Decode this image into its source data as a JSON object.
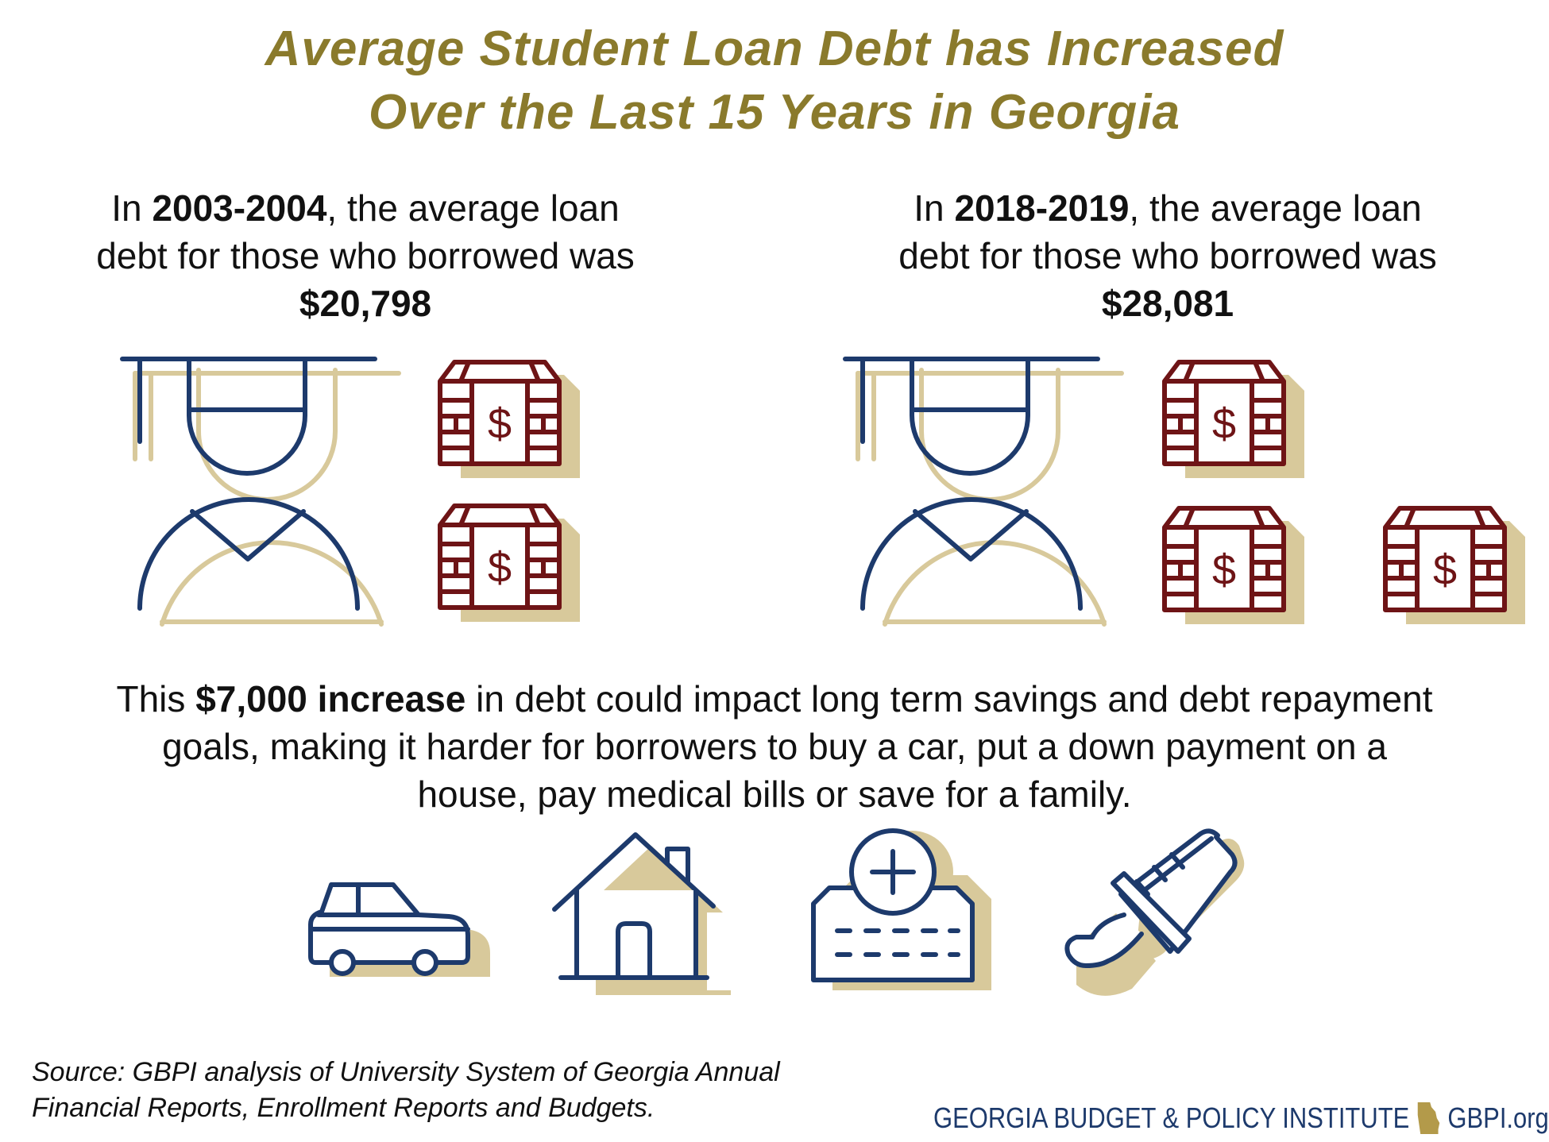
{
  "title": {
    "line1": "Average Student Loan Debt has Increased",
    "line2": "Over the Last 15 Years in Georgia"
  },
  "left_stat": {
    "pre": "In ",
    "year": "2003-2004",
    "mid": ", the average loan debt for those who borrowed was ",
    "amount": "$20,798"
  },
  "right_stat": {
    "pre": "In ",
    "year": "2018-2019",
    "mid": ", the average loan debt for those who borrowed was ",
    "amount": "$28,081"
  },
  "middle": {
    "pre": "This ",
    "bold": "$7,000 increase",
    "post": " in debt could impact long term savings and debt repayment goals, making it harder for borrowers to buy a car, put a down payment on a house, pay medical bills or save for a family."
  },
  "source": {
    "line1": "Source: GBPI analysis of University System of Georgia Annual",
    "line2": "Financial Reports, Enrollment Reports and Budgets."
  },
  "brand": {
    "name": "GEORGIA BUDGET & POLICY INSTITUTE",
    "url": "GBPI.org"
  },
  "icons": {
    "graduate": "graduate-icon",
    "money": "money-bundle-icon",
    "car": "car-icon",
    "house": "house-icon",
    "medical": "medical-bill-icon",
    "bottle": "baby-bottle-icon",
    "georgia": "georgia-state-icon"
  },
  "colors": {
    "title": "#8a7a2c",
    "navy": "#1d3a6c",
    "maroon": "#6e1416",
    "shadow": "#d8c99b"
  }
}
